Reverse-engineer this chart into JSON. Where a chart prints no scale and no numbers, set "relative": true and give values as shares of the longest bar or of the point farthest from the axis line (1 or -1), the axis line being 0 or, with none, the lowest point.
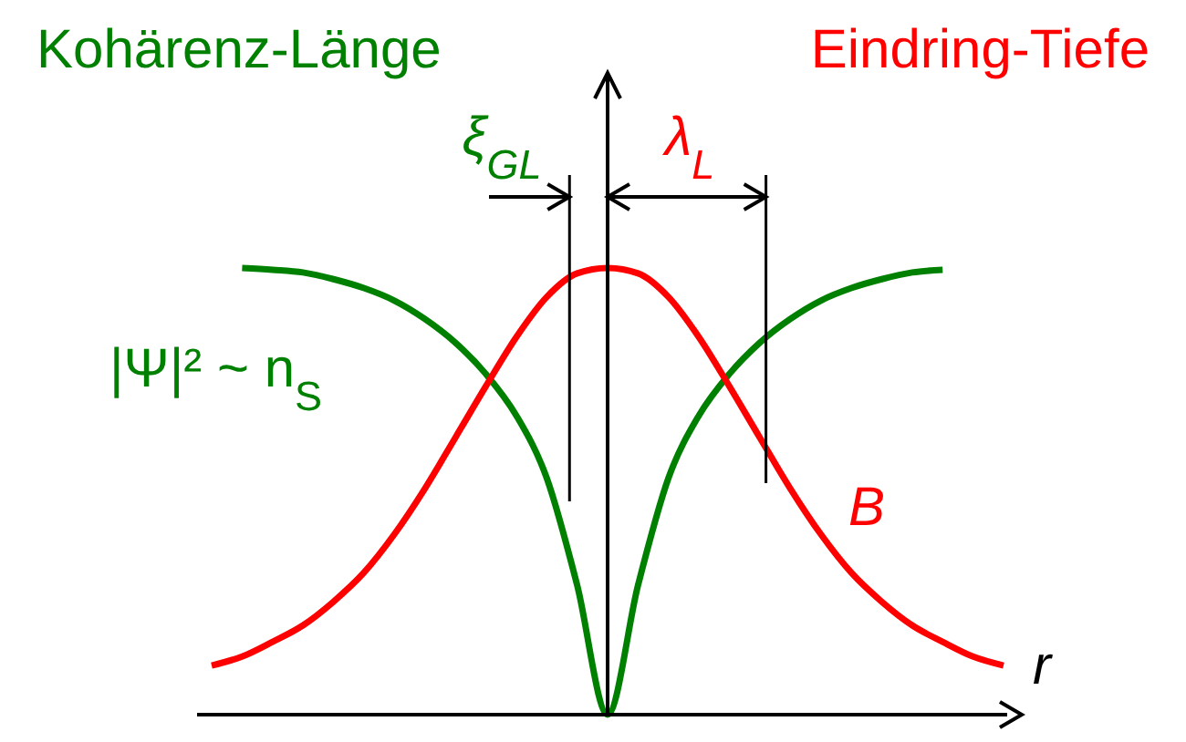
{
  "chart_data": {
    "type": "line",
    "relative": true,
    "xlabel": "r",
    "line_style": "solid",
    "annotations": [
      "Kohärenz-Länge",
      "Eindring-Tiefe",
      "ξ$_{GL}$",
      "λ$_{L}$"
    ],
    "categories": [
      null,
      null,
      null,
      null,
      null,
      null,
      null,
      null,
      null,
      null,
      null,
      null,
      null,
      null,
      null,
      null,
      null,
      null,
      null,
      null,
      null,
      null,
      null,
      null,
      null,
      null,
      null
    ],
    "series": [
      {
        "name": "|Ψ|² ~ n$_{S}$",
        "color": "#008000",
        "values": [
          null,
          1.0,
          0.996,
          0.99,
          0.975,
          0.955,
          0.927,
          0.886,
          0.833,
          0.763,
          0.67,
          0.53,
          0.29,
          0,
          0.29,
          0.53,
          0.67,
          0.763,
          0.833,
          0.886,
          0.927,
          0.955,
          0.975,
          0.99,
          0.996,
          null,
          null
        ]
      },
      {
        "name": "B",
        "color": "#ff0000",
        "values": [
          0.11,
          0.13,
          0.163,
          0.2,
          0.253,
          0.318,
          0.404,
          0.506,
          0.62,
          0.735,
          0.845,
          0.935,
          0.988,
          1,
          0.988,
          0.935,
          0.845,
          0.735,
          0.62,
          0.506,
          0.404,
          0.318,
          0.253,
          0.2,
          0.163,
          0.13,
          0.11
        ]
      }
    ]
  }
}
